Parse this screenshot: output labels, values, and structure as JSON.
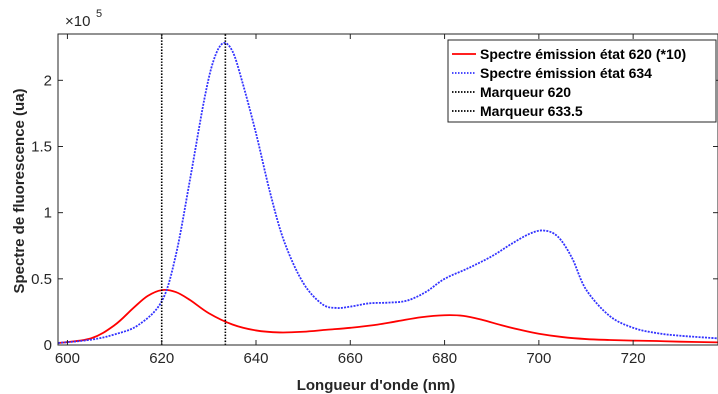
{
  "chart_data": {
    "type": "line",
    "title": "",
    "xlabel": "Longueur d'onde (nm)",
    "ylabel": "Spectre de fluorescence (ua)",
    "y_exponent_label": "×10",
    "y_exponent_power": "5",
    "xlim": [
      598,
      738
    ],
    "ylim": [
      0,
      235000
    ],
    "xticks": [
      600,
      620,
      640,
      660,
      680,
      700,
      720
    ],
    "xtick_labels": [
      "600",
      "620",
      "640",
      "660",
      "680",
      "700",
      "720"
    ],
    "yticks": [
      0,
      50000,
      100000,
      150000,
      200000
    ],
    "ytick_labels": [
      "0",
      "0.5",
      "1",
      "1.5",
      "2"
    ],
    "grid": false,
    "legend_position": "top-right",
    "series": [
      {
        "name": "Spectre émission état 620 (*10)",
        "color": "#ff0000",
        "style": "solid",
        "x": [
          598,
          605,
          610,
          614,
          617,
          620,
          623,
          626,
          630,
          635,
          640,
          645,
          650,
          655,
          660,
          665,
          670,
          675,
          680,
          684,
          688,
          692,
          696,
          700,
          705,
          710,
          715,
          720,
          725,
          730,
          738
        ],
        "y": [
          1500,
          5000,
          15000,
          28000,
          37000,
          41500,
          40000,
          34000,
          24000,
          15500,
          11000,
          9500,
          10000,
          11500,
          13000,
          15000,
          18000,
          21000,
          22500,
          22000,
          19000,
          15000,
          11500,
          8500,
          6000,
          4500,
          3800,
          3300,
          3000,
          2500,
          2000
        ]
      },
      {
        "name": "Spectre émission état 634",
        "color": "#3333ff",
        "style": "dotted",
        "x": [
          598,
          605,
          610,
          615,
          620,
          623,
          626,
          629,
          631,
          633,
          635,
          637,
          640,
          643,
          646,
          650,
          654,
          657,
          660,
          664,
          668,
          672,
          676,
          680,
          685,
          690,
          694,
          698,
          701,
          704,
          707,
          710,
          715,
          720,
          725,
          730,
          738
        ],
        "y": [
          1500,
          4000,
          8000,
          15000,
          33000,
          68000,
          125000,
          185000,
          215000,
          228000,
          222000,
          200000,
          160000,
          115000,
          78000,
          47000,
          31000,
          28000,
          29000,
          31500,
          32000,
          33500,
          40000,
          50000,
          58000,
          67000,
          76000,
          84000,
          86500,
          82000,
          66000,
          42000,
          22000,
          13000,
          9000,
          7000,
          5000
        ]
      },
      {
        "name": "Marqueur 620",
        "color": "#000000",
        "style": "dotted",
        "x": [
          620,
          620
        ],
        "y": [
          0,
          235000
        ]
      },
      {
        "name": "Marqueur 633.5",
        "color": "#000000",
        "style": "dotted",
        "x": [
          633.5,
          633.5
        ],
        "y": [
          0,
          235000
        ]
      }
    ]
  }
}
